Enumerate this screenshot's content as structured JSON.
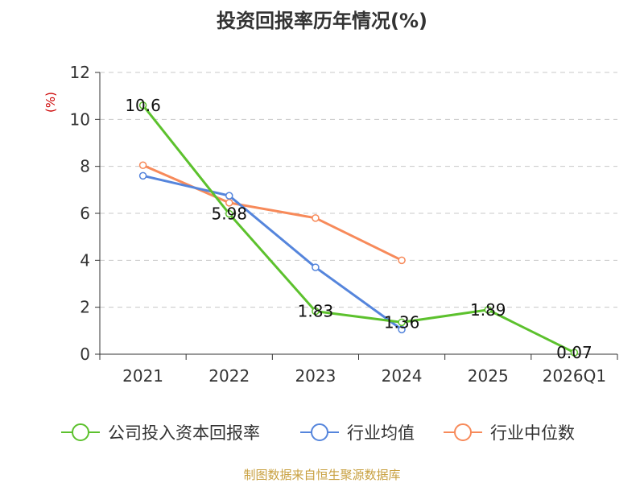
{
  "chart_data": {
    "type": "line",
    "title": "投资回报率历年情况(%)",
    "unit": "(%)",
    "categories": [
      "2021",
      "2022",
      "2023",
      "2024",
      "2025",
      "2026Q1"
    ],
    "ylim": [
      0,
      12
    ],
    "yticks": [
      0,
      2,
      4,
      6,
      8,
      10,
      12
    ],
    "grid": true,
    "legend_position": "bottom",
    "series": [
      {
        "name": "公司投入资本回报率",
        "color": "#5cc12d",
        "values": [
          10.6,
          5.98,
          1.83,
          1.36,
          1.89,
          0.07
        ],
        "labels": [
          "10.6",
          "5.98",
          "1.83",
          "1.36",
          "1.89",
          "0.07"
        ]
      },
      {
        "name": "行业均值",
        "color": "#5585dc",
        "values": [
          7.6,
          6.75,
          3.7,
          1.05,
          null,
          null
        ]
      },
      {
        "name": "行业中位数",
        "color": "#f78a5a",
        "values": [
          8.05,
          6.45,
          5.8,
          4.0,
          null,
          null
        ]
      }
    ],
    "source": "制图数据来自恒生聚源数据库"
  }
}
